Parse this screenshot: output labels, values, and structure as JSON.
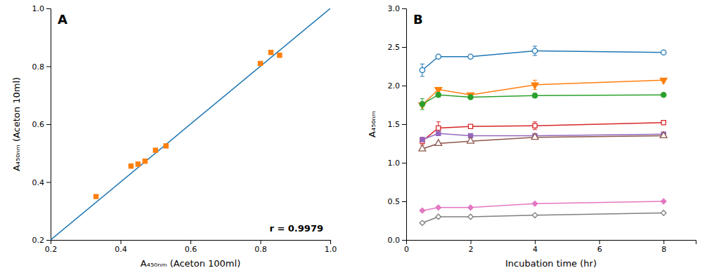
{
  "chart_data": [
    {
      "type": "scatter",
      "title": "A",
      "xlabel": "A₄₅₀ₙₘ (Aceton 100ml)",
      "ylabel": "A₄₅₀ₙₘ (Aceton 10ml)",
      "annotation": "r = 0.9979",
      "series": [
        {
          "type": "line",
          "x": [
            0.2,
            1.0
          ],
          "values": [
            0.2,
            1.0
          ]
        },
        {
          "type": "scatter",
          "marker": "square",
          "x": [
            0.33,
            0.43,
            0.45,
            0.47,
            0.5,
            0.53,
            0.8,
            0.83,
            0.855
          ],
          "values": [
            0.35,
            0.455,
            0.462,
            0.472,
            0.51,
            0.525,
            0.81,
            0.848,
            0.838
          ]
        }
      ],
      "xlim": [
        0.2,
        1.0
      ],
      "ylim": [
        0.2,
        1.0
      ],
      "xticks": [
        0.2,
        0.4,
        0.6,
        0.8,
        {
          "value": 1.0,
          "label": "1.0"
        }
      ],
      "yticks": [
        0.2,
        0.4,
        0.6,
        0.8,
        {
          "value": 1.0,
          "label": "1.0"
        }
      ],
      "grid": false
    },
    {
      "type": "line",
      "title": "B",
      "xlabel": "Incubation time (hr)",
      "ylabel": "A₄₅₀ₙₘ",
      "x": [
        0.5,
        1,
        2,
        4,
        8
      ],
      "series": [
        {
          "marker": "circle-open",
          "values": [
            2.2,
            2.375,
            2.375,
            2.45,
            2.43
          ],
          "errors": [
            0.08,
            0.02,
            0.02,
            0.06,
            0.0
          ]
        },
        {
          "marker": "triangle-down",
          "values": [
            1.75,
            1.95,
            1.88,
            2.01,
            2.07
          ],
          "errors": [
            0.0,
            0.0,
            0.0,
            0.06,
            0.0
          ]
        },
        {
          "marker": "circle",
          "values": [
            1.76,
            1.88,
            1.85,
            1.87,
            1.88
          ],
          "errors": [
            0.07,
            0.03,
            0.0,
            0.03,
            0.0
          ]
        },
        {
          "marker": "square-open",
          "values": [
            1.28,
            1.45,
            1.47,
            1.48,
            1.52
          ],
          "errors": [
            0.05,
            0.08,
            0.0,
            0.05,
            0.0
          ]
        },
        {
          "marker": "square",
          "values": [
            1.3,
            1.38,
            1.35,
            1.35,
            1.37
          ],
          "errors": [
            0.0,
            0.0,
            0.0,
            0.0,
            0.0
          ]
        },
        {
          "marker": "triangle-up-open",
          "values": [
            1.18,
            1.25,
            1.28,
            1.33,
            1.35
          ],
          "errors": [
            0.0,
            0.0,
            0.0,
            0.0,
            0.0
          ]
        },
        {
          "marker": "diamond",
          "values": [
            0.38,
            0.42,
            0.42,
            0.47,
            0.5
          ],
          "errors": [
            0.0,
            0.0,
            0.0,
            0.0,
            0.0
          ]
        },
        {
          "marker": "diamond-open",
          "values": [
            0.22,
            0.3,
            0.3,
            0.32,
            0.35
          ],
          "errors": [
            0.0,
            0.0,
            0.0,
            0.0,
            0.0
          ]
        }
      ],
      "xlim": [
        0,
        9
      ],
      "ylim": [
        0.0,
        3.0
      ],
      "xticks": [
        0,
        2,
        4,
        6,
        8
      ],
      "yticks": [
        {
          "value": 0.0,
          "label": "0.0"
        },
        0.5,
        {
          "value": 1.0,
          "label": "1.0"
        },
        1.5,
        {
          "value": 2.0,
          "label": "2.0"
        },
        2.5,
        {
          "value": 3.0,
          "label": "3.0"
        }
      ],
      "grid": false
    }
  ]
}
